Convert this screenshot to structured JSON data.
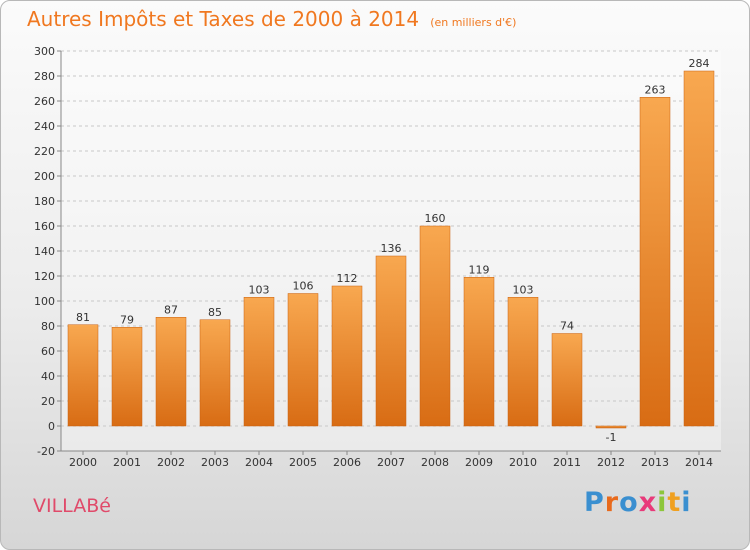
{
  "chart_data": {
    "type": "bar",
    "title": "Autres Impôts et Taxes de 2000 à 2014",
    "unit_note": "(en milliers d'€)",
    "categories": [
      "2000",
      "2001",
      "2002",
      "2003",
      "2004",
      "2005",
      "2006",
      "2007",
      "2008",
      "2009",
      "2010",
      "2011",
      "2012",
      "2013",
      "2014"
    ],
    "values": [
      81,
      79,
      87,
      85,
      103,
      106,
      112,
      136,
      160,
      119,
      103,
      74,
      -1,
      263,
      284
    ],
    "value_labels": [
      "81",
      "79",
      "87",
      "85",
      "103",
      "106",
      "112",
      "136",
      "160",
      "119",
      "103",
      "74",
      "-1",
      "263",
      "284"
    ],
    "ylim": [
      -20,
      300
    ],
    "yticks": [
      -20,
      0,
      20,
      40,
      60,
      80,
      100,
      120,
      140,
      160,
      180,
      200,
      220,
      240,
      260,
      280,
      300
    ],
    "grid": true,
    "bar_color": "#f08a2c"
  },
  "place_label": "VILLABé",
  "brand": {
    "letters": [
      "P",
      "r",
      "o",
      "x",
      "i",
      "t",
      "i"
    ],
    "colors": [
      "#3a8fd0",
      "#e86a1c",
      "#3a8fd0",
      "#e83a7a",
      "#8cc63a",
      "#f0a020",
      "#3a8fd0"
    ]
  }
}
